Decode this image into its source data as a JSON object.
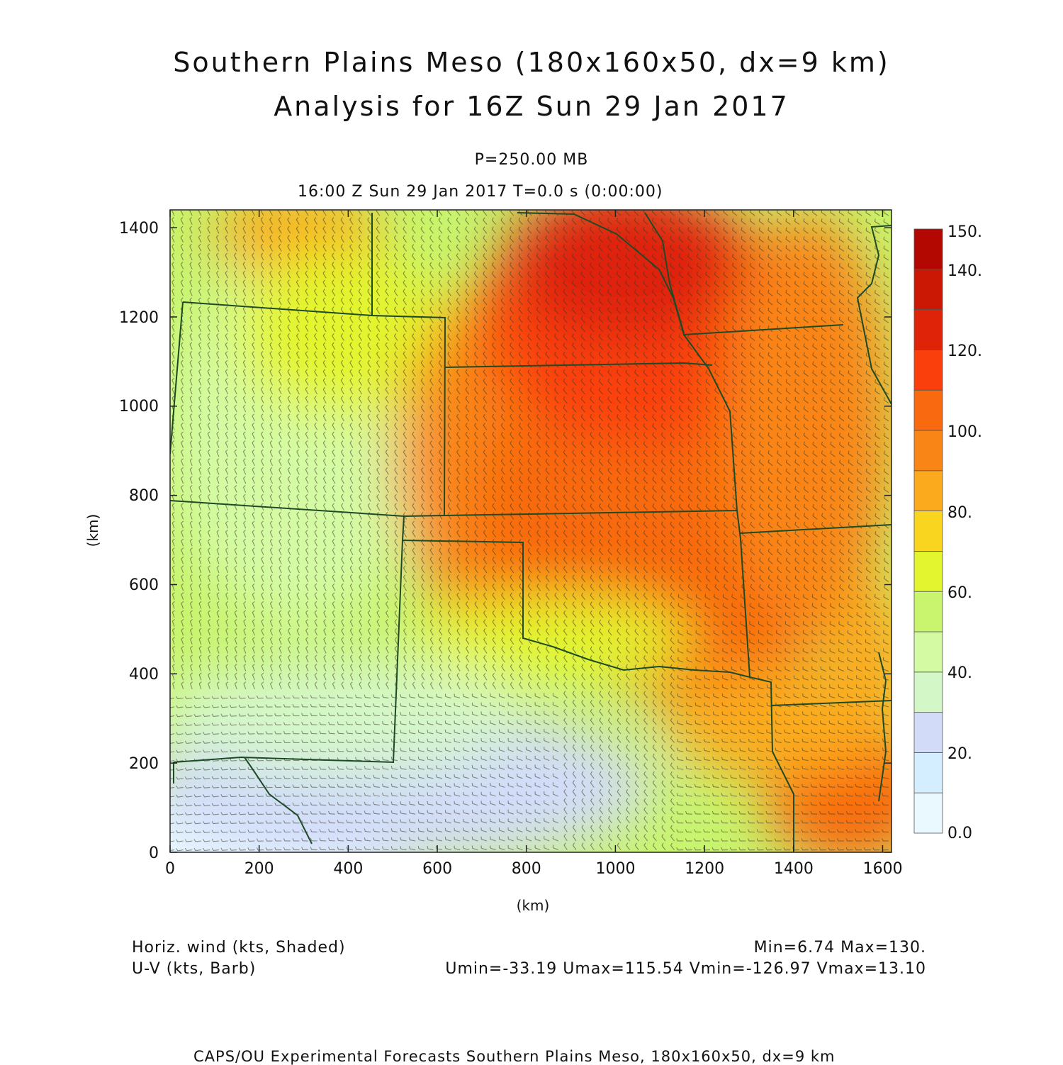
{
  "title": {
    "line1": "Southern Plains Meso (180x160x50, dx=9 km)",
    "line2": "Analysis for 16Z Sun 29 Jan 2017"
  },
  "subtitle": {
    "level": "P=250.00 MB",
    "time": "16:00 Z Sun 29 Jan 2017   T=0.0 s (0:00:00)"
  },
  "axes": {
    "xlabel": "(km)",
    "ylabel": "(km)",
    "x_ticks": [
      0,
      200,
      400,
      600,
      800,
      1000,
      1200,
      1400,
      1600
    ],
    "y_ticks": [
      0,
      200,
      400,
      600,
      800,
      1000,
      1200,
      1400
    ],
    "x_range": [
      0,
      1620
    ],
    "y_range": [
      0,
      1440
    ]
  },
  "colorbar": {
    "labels": [
      "0.0",
      "20.",
      "40.",
      "60.",
      "80.",
      "100.",
      "120.",
      "140.",
      "150."
    ],
    "label_values": [
      0,
      20,
      40,
      60,
      80,
      100,
      120,
      140,
      150
    ],
    "boundaries": [
      0,
      10,
      20,
      30,
      40,
      50,
      60,
      70,
      80,
      90,
      100,
      110,
      120,
      130,
      140,
      150
    ],
    "colors": [
      "#e9f9ff",
      "#d4eeff",
      "#d2dcf9",
      "#d4f7c8",
      "#d4fba4",
      "#c8f46e",
      "#e3f52e",
      "#fad51f",
      "#fbaa1e",
      "#fa8517",
      "#f96910",
      "#fb3f0c",
      "#df2308",
      "#ca1804",
      "#b30802"
    ]
  },
  "chart_data": {
    "type": "heatmap",
    "variable": "Horiz. wind (kts, Shaded)",
    "overlay": "U-V (kts, Barb)",
    "min": 6.74,
    "max": 130,
    "umin": -33.19,
    "umax": 115.54,
    "vmin": -126.97,
    "vmax": 13.1
  },
  "footer": {
    "left1": "Horiz. wind (kts, Shaded)",
    "left2": "U-V (kts, Barb)",
    "right1": "Min=6.74 Max=130.",
    "right2": "Umin=-33.19 Umax=115.54 Vmin=-126.97 Vmax=13.10",
    "credit": "CAPS/OU Experimental Forecasts  Southern Plains Meso, 180x160x50, dx=9 km"
  }
}
